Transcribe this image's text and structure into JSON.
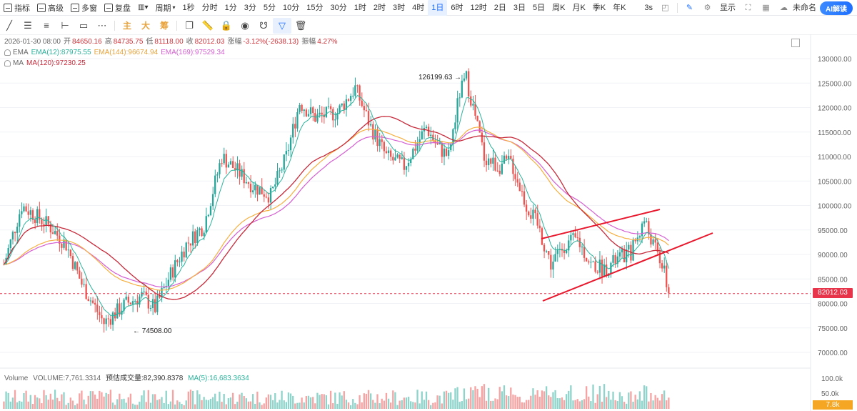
{
  "toolbar": {
    "indicators": "指标",
    "advanced": "高级",
    "multi_window": "多窗",
    "replay": "复盘",
    "period": "周期",
    "timeframes": [
      "1秒",
      "分时",
      "1分",
      "3分",
      "5分",
      "10分",
      "15分",
      "30分",
      "1时",
      "2时",
      "3时",
      "4时",
      "1日",
      "6时",
      "12时",
      "2日",
      "3日",
      "5日",
      "周K",
      "月K",
      "季K",
      "年K"
    ],
    "active_timeframe": "1日",
    "refresh": "3s",
    "display": "显示",
    "unnamed": "未命名",
    "ai": "AI解读"
  },
  "drawing_tools": {
    "cn1": "主",
    "cn2": "大",
    "cn3": "筹"
  },
  "ohlc": {
    "date": "2026-01-30 08:00",
    "open_label": "开",
    "open": "84650.16",
    "high_label": "高",
    "high": "84735.75",
    "low_label": "低",
    "low": "81118.00",
    "close_label": "收",
    "close": "82012.03",
    "change_label": "涨幅",
    "change": "-3.12%(-2638.13)",
    "amp_label": "振幅",
    "amp": "4.27%"
  },
  "ema": {
    "label": "EMA",
    "ema12": "EMA(12):87975.55",
    "ema144": "EMA(144):96674.94",
    "ema169": "EMA(169):97529.34"
  },
  "ma": {
    "label": "MA",
    "ma120": "MA(120):97230.25"
  },
  "volume": {
    "label": "Volume",
    "vol": "VOLUME:7,761.3314",
    "est": "预估成交量:82,390.8378",
    "ma5": "MA(5):16,683.3634"
  },
  "annotations": {
    "high": "126199.63",
    "low": "74508.00"
  },
  "price_axis": [
    "130000.00",
    "125000.00",
    "120000.00",
    "115000.00",
    "110000.00",
    "105000.00",
    "100000.00",
    "95000.00",
    "90000.00",
    "85000.00",
    "80000.00",
    "75000.00",
    "70000.00"
  ],
  "current_price": "82012.03",
  "vol_axis": [
    "100.0k",
    "50.0k"
  ],
  "current_vol": "7.8k",
  "colors": {
    "up": "#26a69a",
    "down": "#ef5350",
    "ema12": "#2bb39b",
    "ema144": "#f5b041",
    "ema169": "#d45fd1",
    "ma120": "#c62a3a",
    "trendline": "#e8172c"
  }
}
